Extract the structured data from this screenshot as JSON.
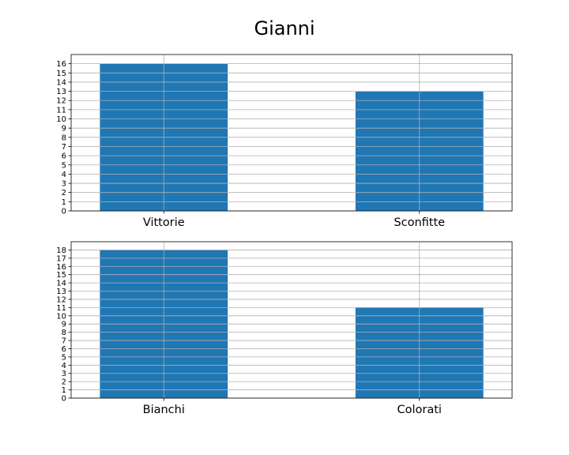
{
  "figure": {
    "title": "Gianni"
  },
  "chart_data": [
    {
      "type": "bar",
      "categories": [
        "Vittorie",
        "Sconfitte"
      ],
      "values": [
        16,
        13
      ],
      "ylim": [
        0,
        17
      ],
      "yticks": [
        0,
        1,
        2,
        3,
        4,
        5,
        6,
        7,
        8,
        9,
        10,
        11,
        12,
        13,
        14,
        15,
        16
      ],
      "grid": true,
      "color": "#1f77b4"
    },
    {
      "type": "bar",
      "categories": [
        "Bianchi",
        "Colorati"
      ],
      "values": [
        18,
        11
      ],
      "ylim": [
        0,
        19
      ],
      "yticks": [
        0,
        1,
        2,
        3,
        4,
        5,
        6,
        7,
        8,
        9,
        10,
        11,
        12,
        13,
        14,
        15,
        16,
        17,
        18
      ],
      "grid": true,
      "color": "#1f77b4"
    }
  ]
}
